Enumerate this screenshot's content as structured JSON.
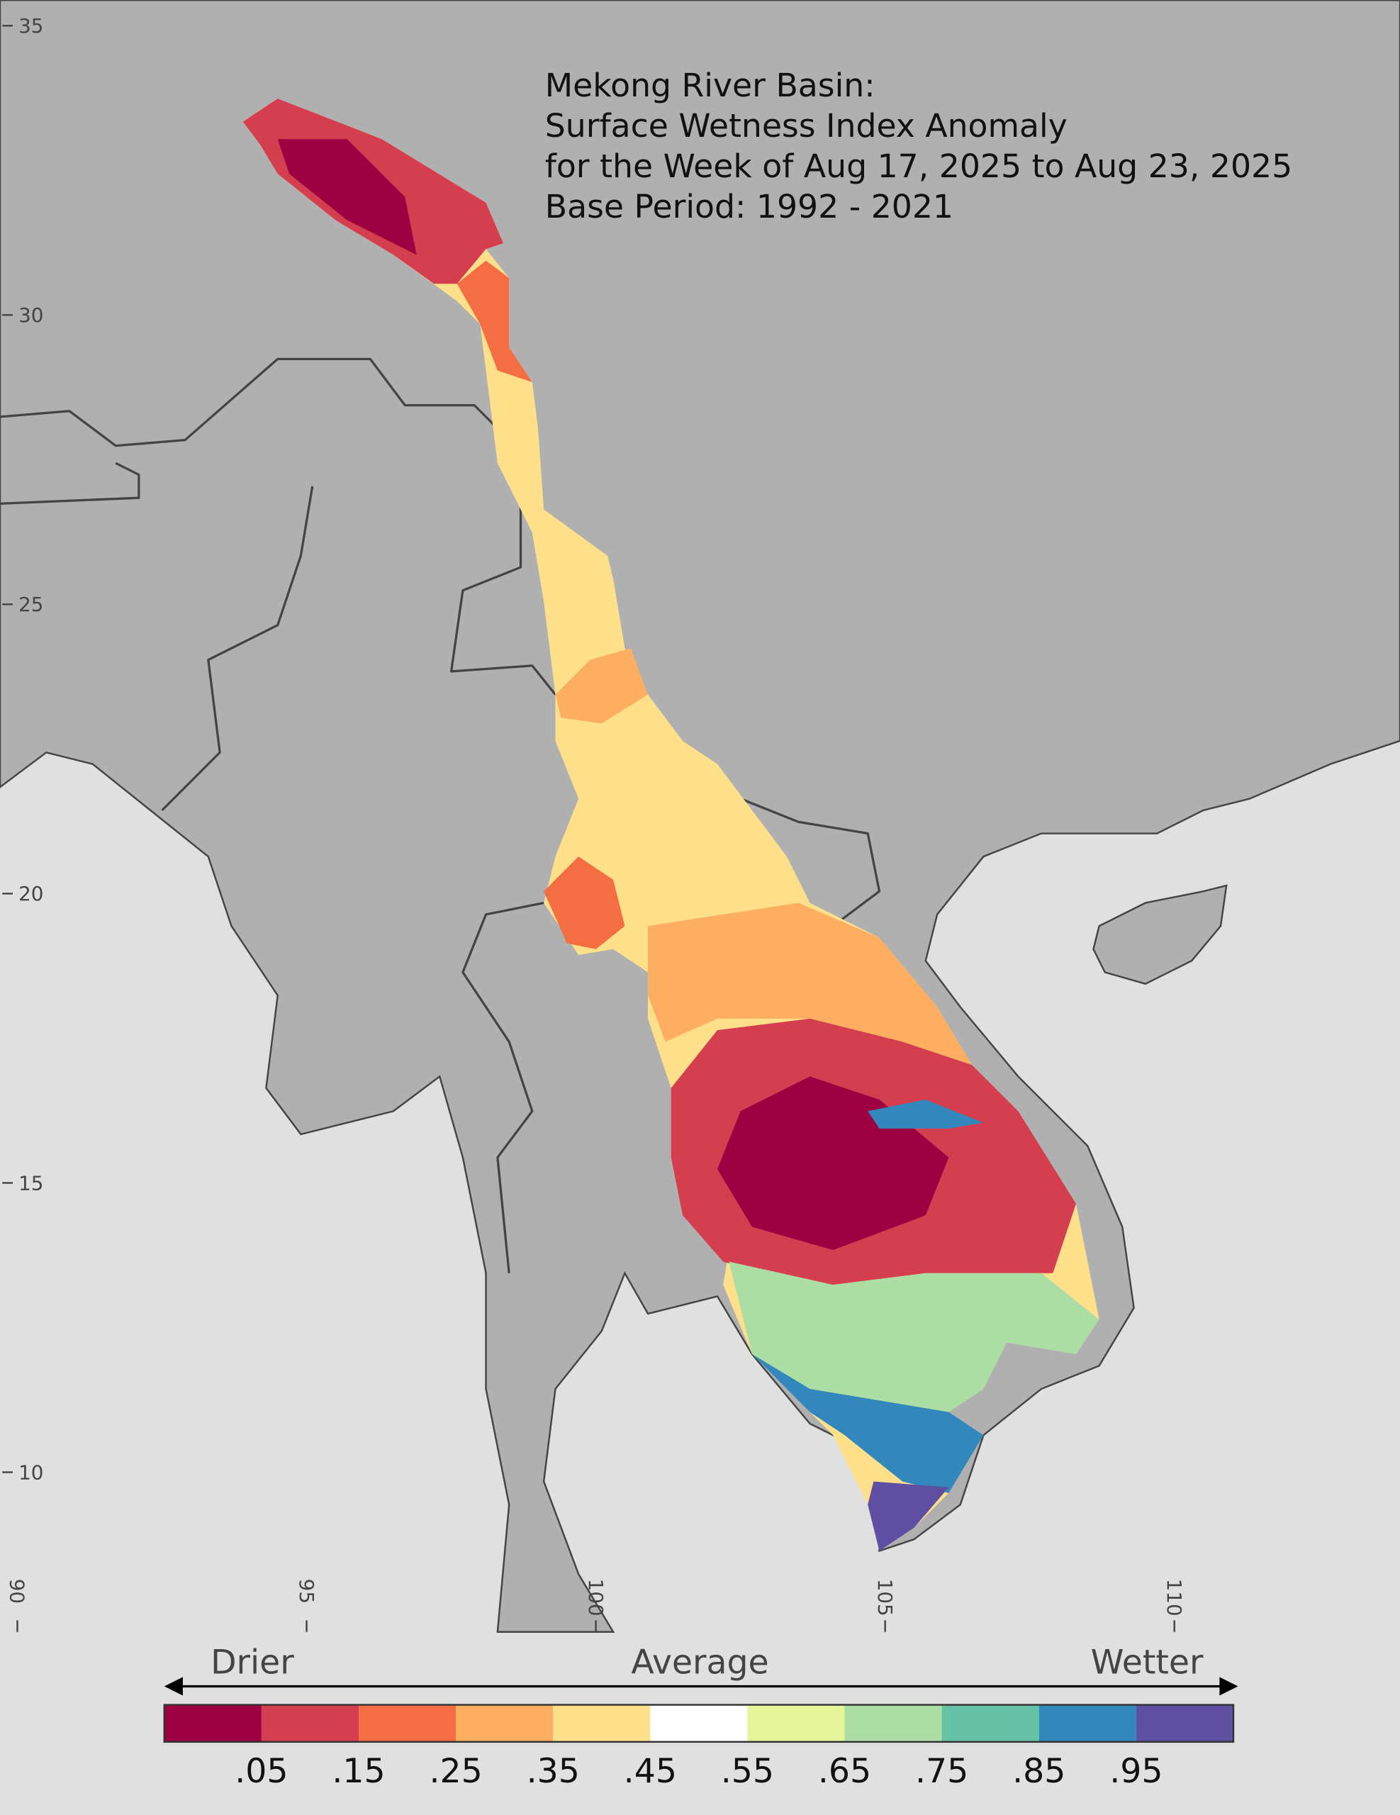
{
  "map": {
    "title_lines": [
      "Mekong River Basin:",
      "Surface Wetness Index Anomaly",
      "for the Week of Aug 17, 2025 to Aug 23, 2025",
      "Base Period: 1992 - 2021"
    ],
    "lat_ticks": [
      35,
      30,
      25,
      20,
      15,
      10
    ],
    "lon_ticks": [
      90,
      95,
      100,
      105,
      110
    ]
  },
  "legend": {
    "drier": "Drier",
    "average": "Average",
    "wetter": "Wetter",
    "colors": [
      "#9e0142",
      "#d53e4f",
      "#f46d43",
      "#fdae61",
      "#fee08b",
      "#ffffff",
      "#e6f598",
      "#abdda4",
      "#66c2a5",
      "#3288bd",
      "#5e4fa2"
    ],
    "ticks": [
      {
        "value": 0.05,
        "label": ".05"
      },
      {
        "value": 0.15,
        "label": ".15"
      },
      {
        "value": 0.25,
        "label": ".25"
      },
      {
        "value": 0.35,
        "label": ".35"
      },
      {
        "value": 0.45,
        "label": ".45"
      },
      {
        "value": 0.55,
        "label": ".55"
      },
      {
        "value": 0.65,
        "label": ".65"
      },
      {
        "value": 0.75,
        "label": ".75"
      },
      {
        "value": 0.85,
        "label": ".85"
      },
      {
        "value": 0.95,
        "label": ".95"
      }
    ]
  }
}
